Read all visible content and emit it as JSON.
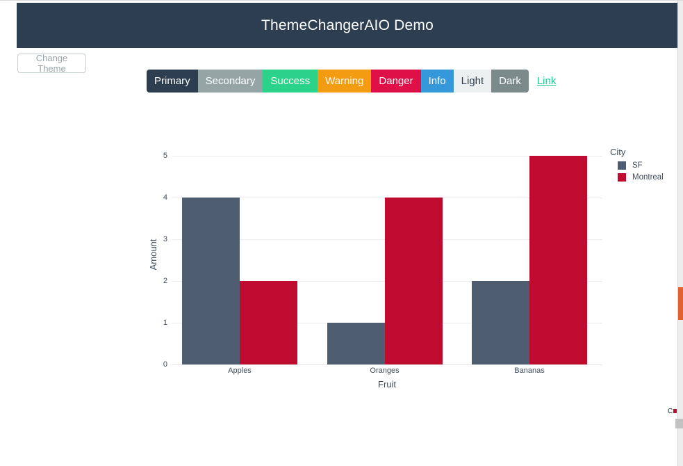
{
  "header": {
    "title": "ThemeChangerAIO Demo",
    "bg_color": "#2c3e50"
  },
  "controls": {
    "change_theme_label": "Change Theme"
  },
  "buttons": {
    "items": [
      {
        "label": "Primary",
        "bg": "#2c3e50",
        "fg": "#ffffff"
      },
      {
        "label": "Secondary",
        "bg": "#95a5a6",
        "fg": "#ffffff"
      },
      {
        "label": "Success",
        "bg": "#2bd38a",
        "fg": "#ffffff"
      },
      {
        "label": "Warning",
        "bg": "#f39c12",
        "fg": "#ffffff"
      },
      {
        "label": "Danger",
        "bg": "#df1048",
        "fg": "#ffffff"
      },
      {
        "label": "Info",
        "bg": "#3498db",
        "fg": "#ffffff"
      },
      {
        "label": "Light",
        "bg": "#ecf0f1",
        "fg": "#2c3e50"
      },
      {
        "label": "Dark",
        "bg": "#7b8a8b",
        "fg": "#ffffff"
      }
    ],
    "link": {
      "label": "Link",
      "color": "#1dcc92"
    }
  },
  "chart_data": {
    "type": "bar",
    "title": "",
    "xlabel": "Fruit",
    "ylabel": "Amount",
    "categories": [
      "Apples",
      "Oranges",
      "Bananas"
    ],
    "series": [
      {
        "name": "SF",
        "color": "#4e5d6f",
        "values": [
          4,
          1,
          2
        ]
      },
      {
        "name": "Montreal",
        "color": "#c00b30",
        "values": [
          2,
          4,
          5
        ]
      }
    ],
    "legend_title": "City",
    "yticks": [
      0,
      1,
      2,
      3,
      4,
      5
    ],
    "ylim": [
      0,
      5
    ],
    "grid": true,
    "legend_position": "right",
    "bar_mode": "group"
  },
  "right_edge": {
    "fragment_text": "C"
  }
}
